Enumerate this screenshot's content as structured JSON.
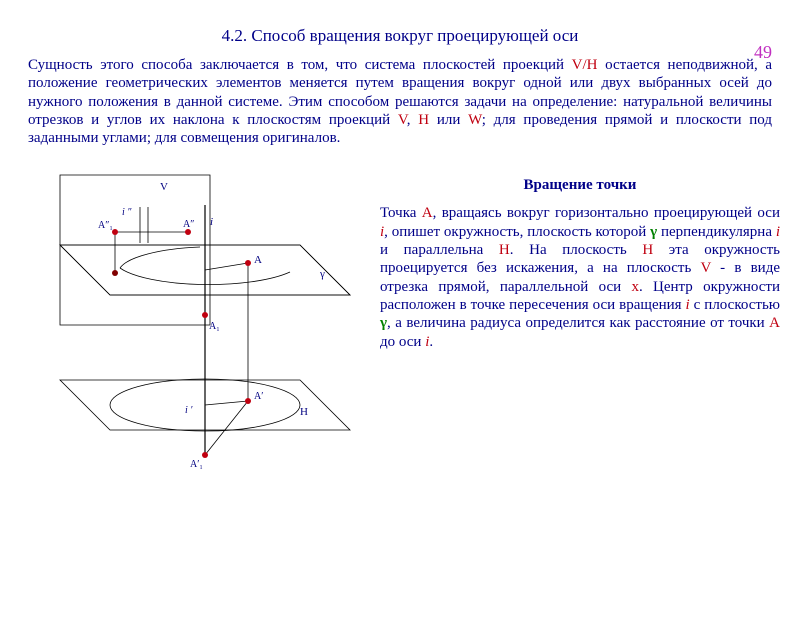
{
  "page_number": "49",
  "title": "4.2. Способ вращения вокруг проецирующей оси",
  "intro_html": "Сущность этого способа заключается в том, что система плоскостей проекций <span class='hl-red'>V/H</span> остается неподвижной, а положение геометрических элементов меняется путем вращения вокруг одной или двух выбранных осей до нужного положения в данной системе. Этим способом решаются задачи на определение: натуральной величины отрезков и углов их наклона к плоскостям проекций <span class='hl-red'>V</span>, <span class='hl-red'>H</span> или <span class='hl-red'>W</span>; для проведения прямой и плоскости под заданными углами; для совмещения оригиналов.",
  "right_title": "Вращение точки",
  "right_body_html": "Точка <span class='hl-red'>А</span>, вращаясь вокруг горизонтально проецирующей оси <span class='hl-red'><i>i</i></span>, опишет окружность, плоскость которой <span class='hl-green'>γ</span> перпендикулярна <span class='hl-red'><i>i</i></span> и параллельна <span class='hl-red'>H</span>. На плоскость <span class='hl-red'>H</span> эта окружность проецируется без искажения, а на плоскость <span class='hl-red'>V</span> - в виде отрезка прямой, параллельной оси <span class='hl-red'>x</span>. Центр окружности расположен в точке пересечения оси вращения <span class='hl-red'><i>i</i></span> с плоскостью <span class='hl-green'>γ</span>, а величина радиуса определится как расстояние от точки <span class='hl-red'>А</span> до оси <span class='hl-red'><i>i</i></span>.",
  "figure": {
    "colors": {
      "plane_V": "#d9eeee",
      "plane_gamma": "#e8e0d0",
      "plane_H": "#f4e0e0",
      "outline": "#000000",
      "point": "#c00010",
      "text": "#000080"
    },
    "labels": {
      "V": "V",
      "H": "H",
      "gamma": "γ",
      "i": "i",
      "i_prime": "i ′",
      "i_dprime": "i ″",
      "A": "A",
      "A1": "A₁",
      "A_prime": "A′",
      "A1_prime": "A′₁",
      "A_dprime": "A″",
      "A1_dprime": "A″₁"
    }
  }
}
